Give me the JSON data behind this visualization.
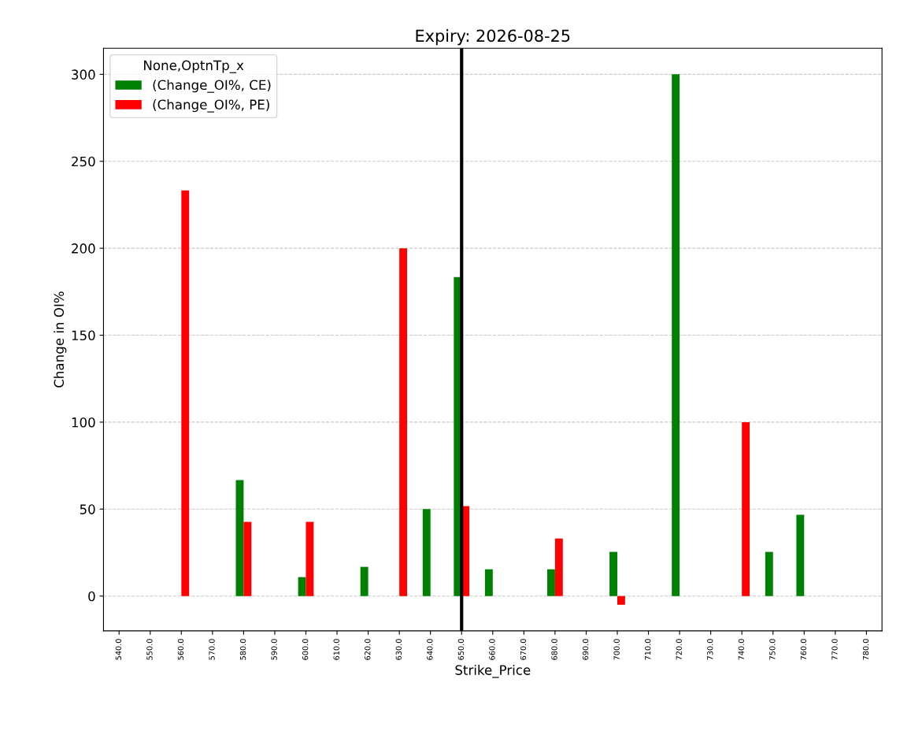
{
  "chart_data": {
    "type": "bar",
    "title": "Expiry: 2026-08-25",
    "xlabel": "Strike_Price",
    "ylabel": "Change in OI%",
    "legend_title": "None,OptnTp_x",
    "categories": [
      "540.0",
      "550.0",
      "560.0",
      "570.0",
      "580.0",
      "590.0",
      "600.0",
      "610.0",
      "620.0",
      "630.0",
      "640.0",
      "650.0",
      "660.0",
      "670.0",
      "680.0",
      "690.0",
      "700.0",
      "710.0",
      "720.0",
      "730.0",
      "740.0",
      "750.0",
      "760.0",
      "770.0",
      "780.0"
    ],
    "series": [
      {
        "name": "(Change_OI%, CE)",
        "color": "#008000",
        "values": [
          null,
          null,
          null,
          null,
          66.7,
          null,
          10.9,
          null,
          16.8,
          null,
          50,
          183.4,
          15.4,
          null,
          15.4,
          null,
          25.4,
          null,
          300,
          null,
          null,
          25.4,
          46.8,
          null,
          null
        ]
      },
      {
        "name": "(Change_OI%, PE)",
        "color": "#ff0000",
        "values": [
          null,
          null,
          233.3,
          null,
          42.7,
          null,
          42.7,
          null,
          null,
          200,
          null,
          51.7,
          null,
          null,
          33.1,
          null,
          -5,
          null,
          null,
          null,
          100,
          null,
          null,
          null,
          null
        ]
      }
    ],
    "ylim": [
      -20,
      315
    ],
    "yticks": [
      0,
      50,
      100,
      150,
      200,
      250,
      300
    ],
    "grid": "y",
    "legend": "top left",
    "ref_lines": [
      {
        "axis": "x",
        "value": "650.0",
        "color": "#000000"
      }
    ]
  }
}
